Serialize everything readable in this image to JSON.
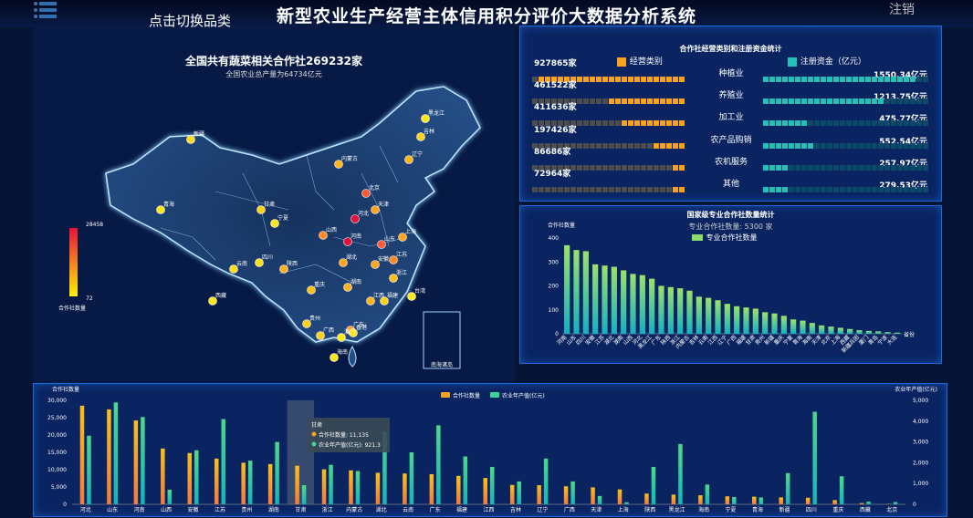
{
  "header": {
    "title": "新型农业生产经营主体信用积分评价大数据分析系统",
    "toggle_label": "点击切换品类",
    "logout_label": "注销",
    "menu_icon": "hamburger-icon"
  },
  "map": {
    "headline": "全国共有蔬菜相关合作社269232家",
    "subtitle": "全国农业总产量为64734亿元",
    "legend": {
      "max": "28458",
      "min": "72",
      "title": "合作社数量"
    },
    "inset_label": "南海诸岛",
    "province_labels": [
      "新疆",
      "西藏",
      "青海",
      "甘肃",
      "宁夏",
      "内蒙古",
      "黑龙江",
      "吉林",
      "辽宁",
      "北京",
      "天津",
      "河北",
      "山西",
      "陕西",
      "四川",
      "重庆",
      "贵州",
      "云南",
      "广西",
      "广东",
      "湖南",
      "湖北",
      "河南",
      "山东",
      "江苏",
      "安徽",
      "浙江",
      "福建",
      "江西",
      "上海",
      "海南",
      "台湾",
      "香港",
      "澳门"
    ]
  },
  "top_right": {
    "title": "合作社经营类别和注册资金统计",
    "legend_left": "经营类别",
    "legend_right": "注册资金（亿元）",
    "rows": [
      {
        "category": "种植业",
        "count": "927865家",
        "capital": "1550.34亿元",
        "left_fill": 0.95,
        "right_fill": 0.92
      },
      {
        "category": "养殖业",
        "count": "461522家",
        "capital": "1213.75亿元",
        "left_fill": 0.48,
        "right_fill": 0.72
      },
      {
        "category": "加工业",
        "count": "411636家",
        "capital": "475.77亿元",
        "left_fill": 0.43,
        "right_fill": 0.25
      },
      {
        "category": "农产品购销",
        "count": "197426家",
        "capital": "552.54亿元",
        "left_fill": 0.2,
        "right_fill": 0.3
      },
      {
        "category": "农机服务",
        "count": "86686家",
        "capital": "257.97亿元",
        "left_fill": 0.1,
        "right_fill": 0.14
      },
      {
        "category": "其他",
        "count": "72964家",
        "capital": "279.53亿元",
        "left_fill": 0.08,
        "right_fill": 0.15
      }
    ]
  },
  "chart_data": [
    {
      "type": "bar",
      "title": "国家级专业合作社数量统计",
      "subtitle": "专业合作社数量:  5300  家",
      "legend": "专业合作社数量",
      "ylabel": "合作社数量",
      "xlabel": "省份",
      "ylim": [
        0,
        400
      ],
      "yticks": [
        0,
        100,
        200,
        300,
        400
      ],
      "categories": [
        "河南",
        "山东",
        "四川",
        "安徽",
        "江苏",
        "湖北",
        "湖南",
        "山西",
        "河北",
        "黑龙江",
        "广东",
        "陕西",
        "浙江",
        "内蒙古",
        "吉林",
        "云南",
        "江西",
        "辽宁",
        "广西",
        "福建",
        "甘肃",
        "贵州",
        "新疆",
        "重庆",
        "宁夏",
        "青海",
        "海南",
        "天津",
        "北京",
        "上海",
        "西藏",
        "新疆兵团",
        "厦门",
        "青岛",
        "宁波",
        "大连"
      ],
      "values": [
        370,
        350,
        345,
        290,
        285,
        280,
        265,
        250,
        245,
        230,
        200,
        195,
        190,
        180,
        155,
        150,
        140,
        125,
        115,
        110,
        105,
        90,
        85,
        75,
        60,
        55,
        45,
        35,
        30,
        25,
        20,
        15,
        12,
        10,
        7,
        5
      ]
    },
    {
      "type": "bar",
      "ylabel_left": "合作社数量",
      "ylabel_right": "农业年产值(亿元)",
      "ylim_left": [
        0,
        30000
      ],
      "ylim_right": [
        0,
        5000
      ],
      "yticks_left": [
        "0",
        "5,000",
        "10,000",
        "15,000",
        "20,000",
        "25,000",
        "30,000"
      ],
      "yticks_right": [
        "0",
        "1,000",
        "2,000",
        "3,000",
        "4,000",
        "5,000"
      ],
      "categories": [
        "河北",
        "山东",
        "河南",
        "山西",
        "安徽",
        "江苏",
        "贵州",
        "湖南",
        "甘肃",
        "浙江",
        "内蒙古",
        "湖北",
        "云南",
        "广东",
        "福建",
        "江西",
        "吉林",
        "辽宁",
        "广西",
        "天津",
        "上海",
        "陕西",
        "黑龙江",
        "海南",
        "宁夏",
        "青海",
        "新疆",
        "四川",
        "重庆",
        "西藏",
        "北京"
      ],
      "series": [
        {
          "name": "合作社数量",
          "color": "#f7a31f",
          "values": [
            28458,
            27400,
            24200,
            16100,
            14800,
            13200,
            12000,
            11600,
            11135,
            10100,
            9800,
            9100,
            8900,
            8700,
            8200,
            7600,
            5600,
            5500,
            5200,
            4900,
            4300,
            3100,
            2800,
            2600,
            2300,
            2200,
            2000,
            1900,
            1200,
            350,
            72
          ]
        },
        {
          "name": "农业年产值(亿元)",
          "color": "#3bd39a",
          "values": [
            3300,
            4900,
            4200,
            700,
            2600,
            4100,
            2100,
            3000,
            921.3,
            1900,
            1600,
            3500,
            2500,
            3800,
            2300,
            1800,
            1100,
            2200,
            1100,
            400,
            100,
            1800,
            2900,
            950,
            350,
            330,
            1500,
            4450,
            1350,
            130,
            110
          ]
        }
      ],
      "tooltip": {
        "title": "甘肃",
        "line1": "合作社数量: 11,135",
        "line2": "农业年产值(亿元): 921.3"
      }
    }
  ]
}
